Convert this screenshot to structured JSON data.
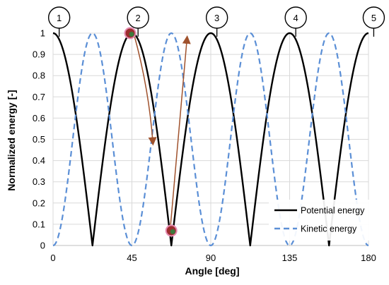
{
  "chart_data": {
    "type": "line",
    "xlabel": "Angle [deg]",
    "ylabel": "Normalized energy [-]",
    "xlim": [
      0,
      180
    ],
    "ylim": [
      0,
      1
    ],
    "x_ticks": [
      "0",
      "45",
      "90",
      "135",
      "180"
    ],
    "y_ticks": [
      "0",
      "0.1",
      "0.2",
      "0.3",
      "0.4",
      "0.5",
      "0.6",
      "0.7",
      "0.8",
      "0.9",
      "1"
    ],
    "grid": true,
    "legend_placement": "bottom-right",
    "series": [
      {
        "name": "Potential energy",
        "style": "solid",
        "color": "#000000",
        "function": "abs(cos(4*angle_deg))",
        "x": [
          0,
          3.75,
          7.5,
          11.25,
          15,
          18.75,
          22.5,
          26.25,
          30,
          33.75,
          37.5,
          41.25,
          45,
          48.75,
          52.5,
          56.25,
          60,
          63.75,
          67.5,
          71.25,
          75,
          78.75,
          82.5,
          86.25,
          90,
          93.75,
          97.5,
          101.25,
          105,
          108.75,
          112.5,
          116.25,
          120,
          123.75,
          127.5,
          131.25,
          135,
          138.75,
          142.5,
          146.25,
          150,
          153.75,
          157.5,
          161.25,
          165,
          168.75,
          172.5,
          176.25,
          180
        ],
        "values": [
          1.0,
          0.966,
          0.866,
          0.707,
          0.5,
          0.259,
          0.0,
          0.259,
          0.5,
          0.707,
          0.866,
          0.966,
          1.0,
          0.966,
          0.866,
          0.707,
          0.5,
          0.259,
          0.0,
          0.259,
          0.5,
          0.707,
          0.866,
          0.966,
          1.0,
          0.966,
          0.866,
          0.707,
          0.5,
          0.259,
          0.0,
          0.259,
          0.5,
          0.707,
          0.866,
          0.966,
          1.0,
          0.966,
          0.866,
          0.707,
          0.5,
          0.259,
          0.0,
          0.259,
          0.5,
          0.707,
          0.866,
          0.966,
          1.0
        ]
      },
      {
        "name": "Kinetic energy",
        "style": "dashed",
        "color": "#5b8fd6",
        "function": "sin(4*angle_deg)^2",
        "x": [
          0,
          3.75,
          7.5,
          11.25,
          15,
          18.75,
          22.5,
          26.25,
          30,
          33.75,
          37.5,
          41.25,
          45,
          48.75,
          52.5,
          56.25,
          60,
          63.75,
          67.5,
          71.25,
          75,
          78.75,
          82.5,
          86.25,
          90,
          93.75,
          97.5,
          101.25,
          105,
          108.75,
          112.5,
          116.25,
          120,
          123.75,
          127.5,
          131.25,
          135,
          138.75,
          142.5,
          146.25,
          150,
          153.75,
          157.5,
          161.25,
          165,
          168.75,
          172.5,
          176.25,
          180
        ],
        "values": [
          0.0,
          0.067,
          0.25,
          0.5,
          0.75,
          0.933,
          1.0,
          0.933,
          0.75,
          0.5,
          0.25,
          0.067,
          0.0,
          0.067,
          0.25,
          0.5,
          0.75,
          0.933,
          1.0,
          0.933,
          0.75,
          0.5,
          0.25,
          0.067,
          0.0,
          0.067,
          0.25,
          0.5,
          0.75,
          0.933,
          1.0,
          0.933,
          0.75,
          0.5,
          0.25,
          0.067,
          0.0,
          0.067,
          0.25,
          0.5,
          0.75,
          0.933,
          1.0,
          0.933,
          0.75,
          0.5,
          0.25,
          0.067,
          0.0
        ]
      }
    ],
    "position_markers": [
      {
        "label": "1",
        "x": 3.5
      },
      {
        "label": "2",
        "x": 48.5
      },
      {
        "label": "3",
        "x": 93.5
      },
      {
        "label": "4",
        "x": 138.5
      },
      {
        "label": "5",
        "x": 183
      }
    ],
    "points": [
      {
        "x": 44,
        "y": 1.0
      },
      {
        "x": 67.5,
        "y": 0.07
      }
    ],
    "arrows": [
      {
        "from": [
          46,
          1.0
        ],
        "to": [
          57,
          0.48
        ],
        "color": "#a0522d"
      },
      {
        "from": [
          67,
          0.09
        ],
        "to": [
          76.5,
          0.98
        ],
        "color": "#a0522d"
      }
    ],
    "legend": [
      {
        "name": "Potential energy",
        "style": "solid"
      },
      {
        "name": "Kinetic energy",
        "style": "dashed"
      }
    ]
  }
}
